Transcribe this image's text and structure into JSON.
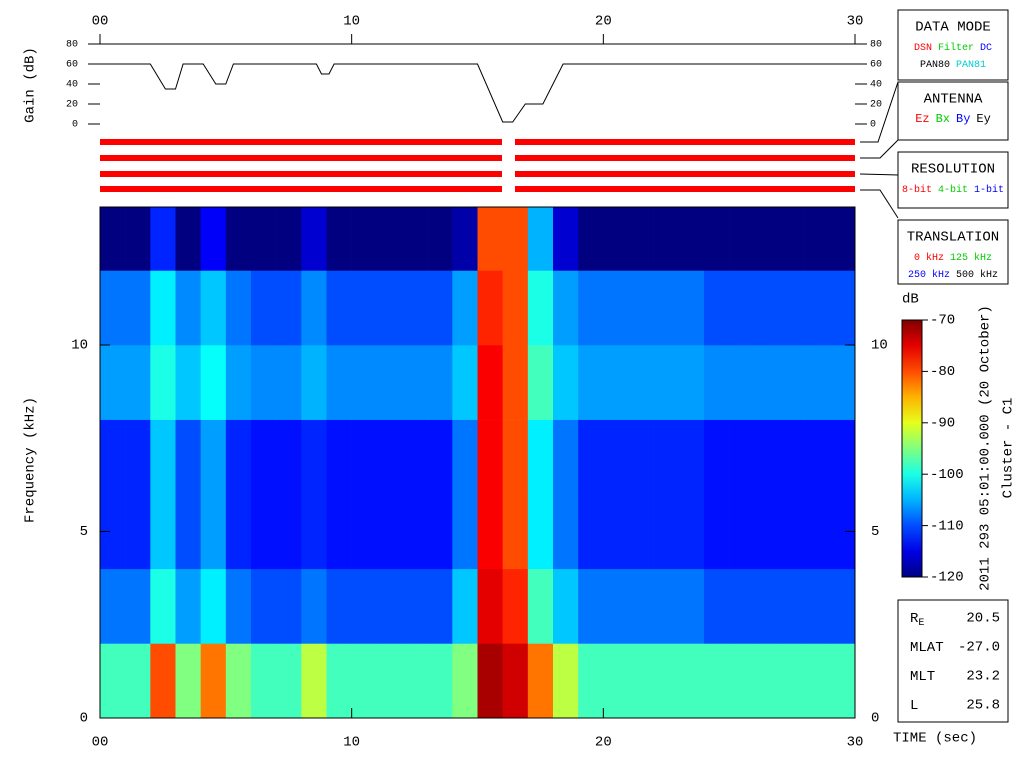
{
  "chart_data": [
    {
      "type": "line",
      "y_label": "Gain (dB)",
      "color": "#000000",
      "x": [
        0,
        2.0,
        2.6,
        3.0,
        3.3,
        4.1,
        4.6,
        5.0,
        5.3,
        8.6,
        8.8,
        9.1,
        9.3,
        15.0,
        16.0,
        16.4,
        16.9,
        17.6,
        18.4,
        30
      ],
      "values": [
        60,
        60,
        35,
        35,
        60,
        60,
        40,
        40,
        60,
        60,
        50,
        50,
        60,
        60,
        2,
        2,
        20,
        20,
        60,
        60
      ],
      "xlim": [
        0,
        30
      ],
      "ylim": [
        0,
        80
      ],
      "yticks": [
        0,
        20,
        40,
        60,
        80
      ],
      "xticks": [
        {
          "value": 0,
          "label": "00"
        },
        10,
        20,
        30
      ]
    },
    {
      "type": "heatmap",
      "y_label": "Frequency (kHz)",
      "x_label": "TIME (sec)",
      "x_edges": [
        0,
        1,
        2,
        3,
        4,
        5,
        6,
        7,
        8,
        9,
        10,
        11,
        12,
        13,
        14,
        15,
        16,
        17,
        18,
        19,
        20,
        21,
        22,
        23,
        24,
        25,
        26,
        27,
        28,
        29,
        30
      ],
      "y_edges": [
        0,
        2,
        4,
        6,
        8,
        10,
        12,
        13.7
      ],
      "z": [
        [
          -98,
          -98,
          -80,
          -95,
          -82,
          -95,
          -98,
          -98,
          -92,
          -98,
          -98,
          -98,
          -98,
          -98,
          -95,
          -72,
          -74,
          -82,
          -92,
          -98,
          -98,
          -98,
          -98,
          -98,
          -98,
          -98,
          -98,
          -98,
          -98,
          -98
        ],
        [
          -108,
          -108,
          -100,
          -106,
          -102,
          -108,
          -110,
          -110,
          -108,
          -110,
          -110,
          -110,
          -110,
          -110,
          -104,
          -75,
          -78,
          -98,
          -104,
          -108,
          -108,
          -108,
          -108,
          -108,
          -110,
          -110,
          -110,
          -110,
          -110,
          -110
        ],
        [
          -112,
          -112,
          -104,
          -110,
          -106,
          -112,
          -113,
          -113,
          -112,
          -113,
          -113,
          -113,
          -113,
          -113,
          -108,
          -76,
          -80,
          -102,
          -108,
          -112,
          -112,
          -112,
          -112,
          -112,
          -113,
          -113,
          -113,
          -113,
          -113,
          -113
        ],
        [
          -112,
          -112,
          -104,
          -110,
          -106,
          -112,
          -113,
          -113,
          -112,
          -113,
          -113,
          -113,
          -113,
          -113,
          -108,
          -76,
          -80,
          -102,
          -108,
          -112,
          -112,
          -112,
          -112,
          -112,
          -113,
          -113,
          -113,
          -113,
          -113,
          -113
        ],
        [
          -106,
          -106,
          -100,
          -104,
          -101,
          -106,
          -107,
          -107,
          -105,
          -107,
          -107,
          -107,
          -107,
          -107,
          -104,
          -76,
          -80,
          -98,
          -104,
          -106,
          -106,
          -106,
          -106,
          -106,
          -107,
          -107,
          -107,
          -107,
          -107,
          -107
        ],
        [
          -108,
          -108,
          -102,
          -107,
          -104,
          -108,
          -110,
          -110,
          -107,
          -110,
          -110,
          -110,
          -110,
          -110,
          -106,
          -78,
          -80,
          -100,
          -106,
          -108,
          -108,
          -108,
          -108,
          -108,
          -110,
          -110,
          -110,
          -110,
          -110,
          -110
        ],
        [
          -120,
          -120,
          -112,
          -120,
          -114,
          -120,
          -120,
          -120,
          -116,
          -120,
          -120,
          -120,
          -120,
          -120,
          -118,
          -80,
          -80,
          -105,
          -116,
          -120,
          -120,
          -120,
          -120,
          -120,
          -120,
          -120,
          -120,
          -120,
          -120,
          -120
        ]
      ],
      "xlim": [
        0,
        30
      ],
      "ylim": [
        0,
        13.7
      ],
      "yticks": [
        0,
        5,
        10
      ],
      "xticks": [
        {
          "value": 0,
          "label": "00"
        },
        10,
        20,
        30
      ],
      "colorbar": {
        "label": "dB",
        "lim": [
          -120,
          -70
        ],
        "ticks": [
          -120,
          -110,
          -100,
          -90,
          -80,
          -70
        ]
      }
    }
  ],
  "panels": [
    {
      "title": "DATA MODE",
      "lines": [
        [
          {
            "text": "DSN",
            "color": "#ff0000"
          },
          {
            "text": "Filter",
            "color": "#00cc00"
          },
          {
            "text": "DC",
            "color": "#0000ff"
          }
        ],
        [
          {
            "text": "PAN80",
            "color": "#000000"
          },
          {
            "text": "PAN81",
            "color": "#00cccc"
          }
        ]
      ]
    },
    {
      "title": "ANTENNA",
      "lines": [
        [
          {
            "text": "Ez",
            "color": "#ff0000"
          },
          {
            "text": "Bx",
            "color": "#00cc00"
          },
          {
            "text": "By",
            "color": "#0000ff"
          },
          {
            "text": "Ey",
            "color": "#000000"
          }
        ]
      ]
    },
    {
      "title": "RESOLUTION",
      "lines": [
        [
          {
            "text": "8-bit",
            "color": "#ff0000"
          },
          {
            "text": "4-bit",
            "color": "#00cc00"
          },
          {
            "text": "1-bit",
            "color": "#0000ff"
          }
        ]
      ]
    },
    {
      "title": "TRANSLATION",
      "lines": [
        [
          {
            "text": "0 kHz",
            "color": "#ff0000"
          },
          {
            "text": "125 kHz",
            "color": "#00cc00"
          }
        ],
        [
          {
            "text": "250 kHz",
            "color": "#0000ff"
          },
          {
            "text": "500 kHz",
            "color": "#000000"
          }
        ]
      ]
    }
  ],
  "date_label": "2011 293 05:01:00.000 (20 October)",
  "spacecraft": "Cluster - C1",
  "info": [
    {
      "label": "R",
      "sub": "E",
      "value": "20.5"
    },
    {
      "label": "MLAT",
      "value": "-27.0"
    },
    {
      "label": "MLT",
      "value": "23.2"
    },
    {
      "label": "L",
      "value": "25.8"
    }
  ]
}
